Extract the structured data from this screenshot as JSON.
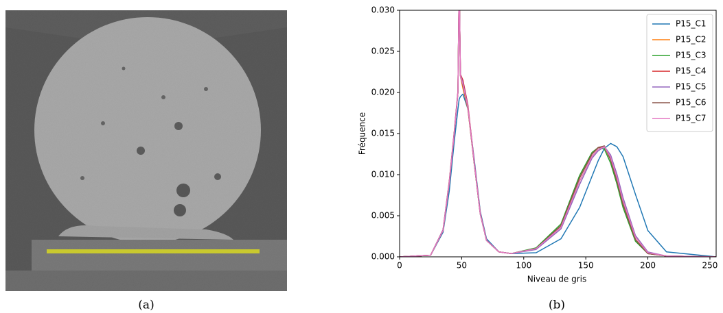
{
  "image_caption": "(a)",
  "chart_data": {
    "type": "line",
    "caption": "(b)",
    "xlabel": "Niveau de gris",
    "ylabel": "Fréquence",
    "x": [
      0,
      25,
      35,
      40,
      44,
      47,
      48,
      49,
      51,
      55,
      60,
      65,
      70,
      80,
      90,
      110,
      130,
      145,
      155,
      160,
      165,
      170,
      175,
      180,
      190,
      200,
      215,
      255
    ],
    "series": [
      {
        "name": "P15_C1",
        "color": "#1f77b4",
        "values": [
          0,
          0.0002,
          0.003,
          0.008,
          0.014,
          0.018,
          0.0192,
          0.0195,
          0.0198,
          0.018,
          0.012,
          0.0055,
          0.0022,
          0.0006,
          0.0004,
          0.0005,
          0.0022,
          0.006,
          0.0098,
          0.0117,
          0.0132,
          0.0138,
          0.0134,
          0.0122,
          0.0076,
          0.0032,
          0.0006,
          0
        ]
      },
      {
        "name": "P15_C2",
        "color": "#ff7f0e",
        "values": [
          0,
          0.0002,
          0.0032,
          0.009,
          0.015,
          0.02,
          0.034,
          0.022,
          0.0205,
          0.018,
          0.0115,
          0.0052,
          0.002,
          0.0006,
          0.0004,
          0.001,
          0.0036,
          0.0092,
          0.0122,
          0.0131,
          0.0134,
          0.0121,
          0.0097,
          0.0068,
          0.0024,
          0.0005,
          0.0001,
          0
        ]
      },
      {
        "name": "P15_C3",
        "color": "#2ca02c",
        "values": [
          0,
          0.0002,
          0.0032,
          0.009,
          0.015,
          0.02,
          0.034,
          0.022,
          0.021,
          0.0182,
          0.0115,
          0.0052,
          0.002,
          0.0006,
          0.0004,
          0.0011,
          0.004,
          0.0099,
          0.0127,
          0.0133,
          0.0131,
          0.0114,
          0.0089,
          0.006,
          0.0019,
          0.0004,
          0.0001,
          0
        ]
      },
      {
        "name": "P15_C4",
        "color": "#d62728",
        "values": [
          0,
          0.0002,
          0.0033,
          0.0092,
          0.0152,
          0.0202,
          0.034,
          0.0222,
          0.0215,
          0.0185,
          0.0117,
          0.0053,
          0.002,
          0.0006,
          0.0004,
          0.001,
          0.0038,
          0.0096,
          0.0125,
          0.0133,
          0.0134,
          0.0118,
          0.0093,
          0.0064,
          0.0021,
          0.0004,
          0.0001,
          0
        ]
      },
      {
        "name": "P15_C5",
        "color": "#9467bd",
        "values": [
          0,
          0.0002,
          0.0033,
          0.0091,
          0.0151,
          0.0201,
          0.034,
          0.0221,
          0.0212,
          0.0183,
          0.0116,
          0.0052,
          0.002,
          0.0006,
          0.0004,
          0.0009,
          0.0034,
          0.0088,
          0.012,
          0.0129,
          0.0134,
          0.0124,
          0.0101,
          0.0072,
          0.0026,
          0.0006,
          0.0001,
          0
        ]
      },
      {
        "name": "P15_C6",
        "color": "#8c564b",
        "values": [
          0,
          0.0002,
          0.0032,
          0.009,
          0.015,
          0.02,
          0.034,
          0.022,
          0.0208,
          0.0181,
          0.0115,
          0.0052,
          0.002,
          0.0006,
          0.0004,
          0.001,
          0.0038,
          0.0096,
          0.0125,
          0.0133,
          0.0135,
          0.0118,
          0.0093,
          0.0064,
          0.0021,
          0.0004,
          0.0001,
          0
        ]
      },
      {
        "name": "P15_C7",
        "color": "#e377c2",
        "values": [
          0,
          0.0002,
          0.0032,
          0.009,
          0.015,
          0.02,
          0.034,
          0.022,
          0.021,
          0.0182,
          0.0116,
          0.0052,
          0.002,
          0.0006,
          0.0004,
          0.001,
          0.0036,
          0.0092,
          0.0122,
          0.0131,
          0.0134,
          0.0121,
          0.0097,
          0.0068,
          0.0024,
          0.0005,
          0.0001,
          0
        ]
      }
    ],
    "xlim": [
      0,
      255
    ],
    "xticks": [
      0,
      50,
      100,
      150,
      200,
      250
    ],
    "ylim": [
      0,
      0.03
    ],
    "yticks": [
      {
        "value": 0,
        "label": "0.000"
      },
      {
        "value": 0.005,
        "label": "0.005"
      },
      {
        "value": 0.01,
        "label": "0.010"
      },
      {
        "value": 0.015,
        "label": "0.015"
      },
      {
        "value": 0.02,
        "label": "0.020"
      },
      {
        "value": 0.025,
        "label": "0.025"
      },
      {
        "value": 0.03,
        "label": "0.030"
      }
    ],
    "legend": "upper right",
    "grid": false
  }
}
